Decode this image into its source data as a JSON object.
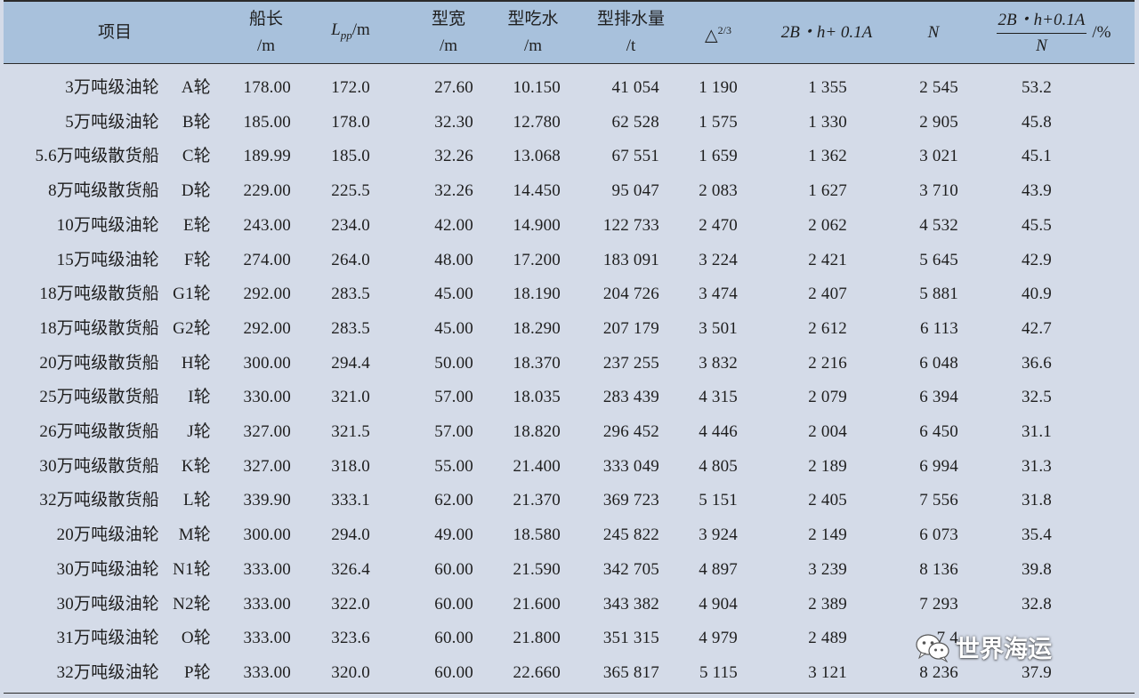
{
  "header": {
    "item": "项目",
    "length_top": "船长",
    "length_unit": "/m",
    "lpp_sub": "pp",
    "lpp_unit": "/m",
    "lpp_L": "L",
    "width_top": "型宽",
    "width_unit": "/m",
    "draft_top": "型吃水",
    "draft_unit": "/m",
    "disp_top": "型排水量",
    "disp_unit": "/t",
    "delta": "△",
    "delta_exp": "2/3",
    "formula": "2B・h+ 0.1A",
    "n": "N",
    "ratio_num": "2B・h+0.1A",
    "ratio_den": "N",
    "ratio_unit": "/%"
  },
  "rows": [
    {
      "name": "3万吨级油轮",
      "ship": "A轮",
      "length": "178.00",
      "lpp": "172.0",
      "width": "27.60",
      "draft": "10.150",
      "disp": "41 054",
      "delta": "1 190",
      "formula": "1 355",
      "n": "2 545",
      "ratio": "53.2"
    },
    {
      "name": "5万吨级油轮",
      "ship": "B轮",
      "length": "185.00",
      "lpp": "178.0",
      "width": "32.30",
      "draft": "12.780",
      "disp": "62 528",
      "delta": "1 575",
      "formula": "1 330",
      "n": "2 905",
      "ratio": "45.8"
    },
    {
      "name": "5.6万吨级散货船",
      "ship": "C轮",
      "length": "189.99",
      "lpp": "185.0",
      "width": "32.26",
      "draft": "13.068",
      "disp": "67 551",
      "delta": "1 659",
      "formula": "1 362",
      "n": "3 021",
      "ratio": "45.1"
    },
    {
      "name": "8万吨级散货船",
      "ship": "D轮",
      "length": "229.00",
      "lpp": "225.5",
      "width": "32.26",
      "draft": "14.450",
      "disp": "95 047",
      "delta": "2 083",
      "formula": "1 627",
      "n": "3 710",
      "ratio": "43.9"
    },
    {
      "name": "10万吨级油轮",
      "ship": "E轮",
      "length": "243.00",
      "lpp": "234.0",
      "width": "42.00",
      "draft": "14.900",
      "disp": "122 733",
      "delta": "2 470",
      "formula": "2 062",
      "n": "4 532",
      "ratio": "45.5"
    },
    {
      "name": "15万吨级油轮",
      "ship": "F轮",
      "length": "274.00",
      "lpp": "264.0",
      "width": "48.00",
      "draft": "17.200",
      "disp": "183 091",
      "delta": "3 224",
      "formula": "2 421",
      "n": "5 645",
      "ratio": "42.9"
    },
    {
      "name": "18万吨级散货船",
      "ship": "G1轮",
      "length": "292.00",
      "lpp": "283.5",
      "width": "45.00",
      "draft": "18.190",
      "disp": "204 726",
      "delta": "3 474",
      "formula": "2 407",
      "n": "5 881",
      "ratio": "40.9"
    },
    {
      "name": "18万吨级散货船",
      "ship": "G2轮",
      "length": "292.00",
      "lpp": "283.5",
      "width": "45.00",
      "draft": "18.290",
      "disp": "207 179",
      "delta": "3 501",
      "formula": "2 612",
      "n": "6 113",
      "ratio": "42.7"
    },
    {
      "name": "20万吨级散货船",
      "ship": "H轮",
      "length": "300.00",
      "lpp": "294.4",
      "width": "50.00",
      "draft": "18.370",
      "disp": "237 255",
      "delta": "3 832",
      "formula": "2 216",
      "n": "6 048",
      "ratio": "36.6"
    },
    {
      "name": "25万吨级散货船",
      "ship": "I轮",
      "length": "330.00",
      "lpp": "321.0",
      "width": "57.00",
      "draft": "18.035",
      "disp": "283 439",
      "delta": "4 315",
      "formula": "2 079",
      "n": "6 394",
      "ratio": "32.5"
    },
    {
      "name": "26万吨级散货船",
      "ship": "J轮",
      "length": "327.00",
      "lpp": "321.5",
      "width": "57.00",
      "draft": "18.820",
      "disp": "296 452",
      "delta": "4 446",
      "formula": "2 004",
      "n": "6 450",
      "ratio": "31.1"
    },
    {
      "name": "30万吨级散货船",
      "ship": "K轮",
      "length": "327.00",
      "lpp": "318.0",
      "width": "55.00",
      "draft": "21.400",
      "disp": "333 049",
      "delta": "4 805",
      "formula": "2 189",
      "n": "6 994",
      "ratio": "31.3"
    },
    {
      "name": "32万吨级散货船",
      "ship": "L轮",
      "length": "339.90",
      "lpp": "333.1",
      "width": "62.00",
      "draft": "21.370",
      "disp": "369 723",
      "delta": "5 151",
      "formula": "2 405",
      "n": "7 556",
      "ratio": "31.8"
    },
    {
      "name": "20万吨级油轮",
      "ship": "M轮",
      "length": "300.00",
      "lpp": "294.0",
      "width": "49.00",
      "draft": "18.580",
      "disp": "245 822",
      "delta": "3 924",
      "formula": "2 149",
      "n": "6 073",
      "ratio": "35.4"
    },
    {
      "name": "30万吨级油轮",
      "ship": "N1轮",
      "length": "333.00",
      "lpp": "326.4",
      "width": "60.00",
      "draft": "21.590",
      "disp": "342 705",
      "delta": "4 897",
      "formula": "3 239",
      "n": "8 136",
      "ratio": "39.8"
    },
    {
      "name": "30万吨级油轮",
      "ship": "N2轮",
      "length": "333.00",
      "lpp": "322.0",
      "width": "60.00",
      "draft": "21.600",
      "disp": "343 382",
      "delta": "4 904",
      "formula": "2 389",
      "n": "7 293",
      "ratio": "32.8"
    },
    {
      "name": "31万吨级油轮",
      "ship": "O轮",
      "length": "333.00",
      "lpp": "323.6",
      "width": "60.00",
      "draft": "21.800",
      "disp": "351 315",
      "delta": "4 979",
      "formula": "2 489",
      "n": "7 4",
      "ratio": ""
    },
    {
      "name": "32万吨级油轮",
      "ship": "P轮",
      "length": "333.00",
      "lpp": "320.0",
      "width": "60.00",
      "draft": "22.660",
      "disp": "365 817",
      "delta": "5 115",
      "formula": "3 121",
      "n": "8 236",
      "ratio": "37.9"
    }
  ],
  "watermark": {
    "text": "世界海运",
    "icon": "wechat-icon"
  }
}
